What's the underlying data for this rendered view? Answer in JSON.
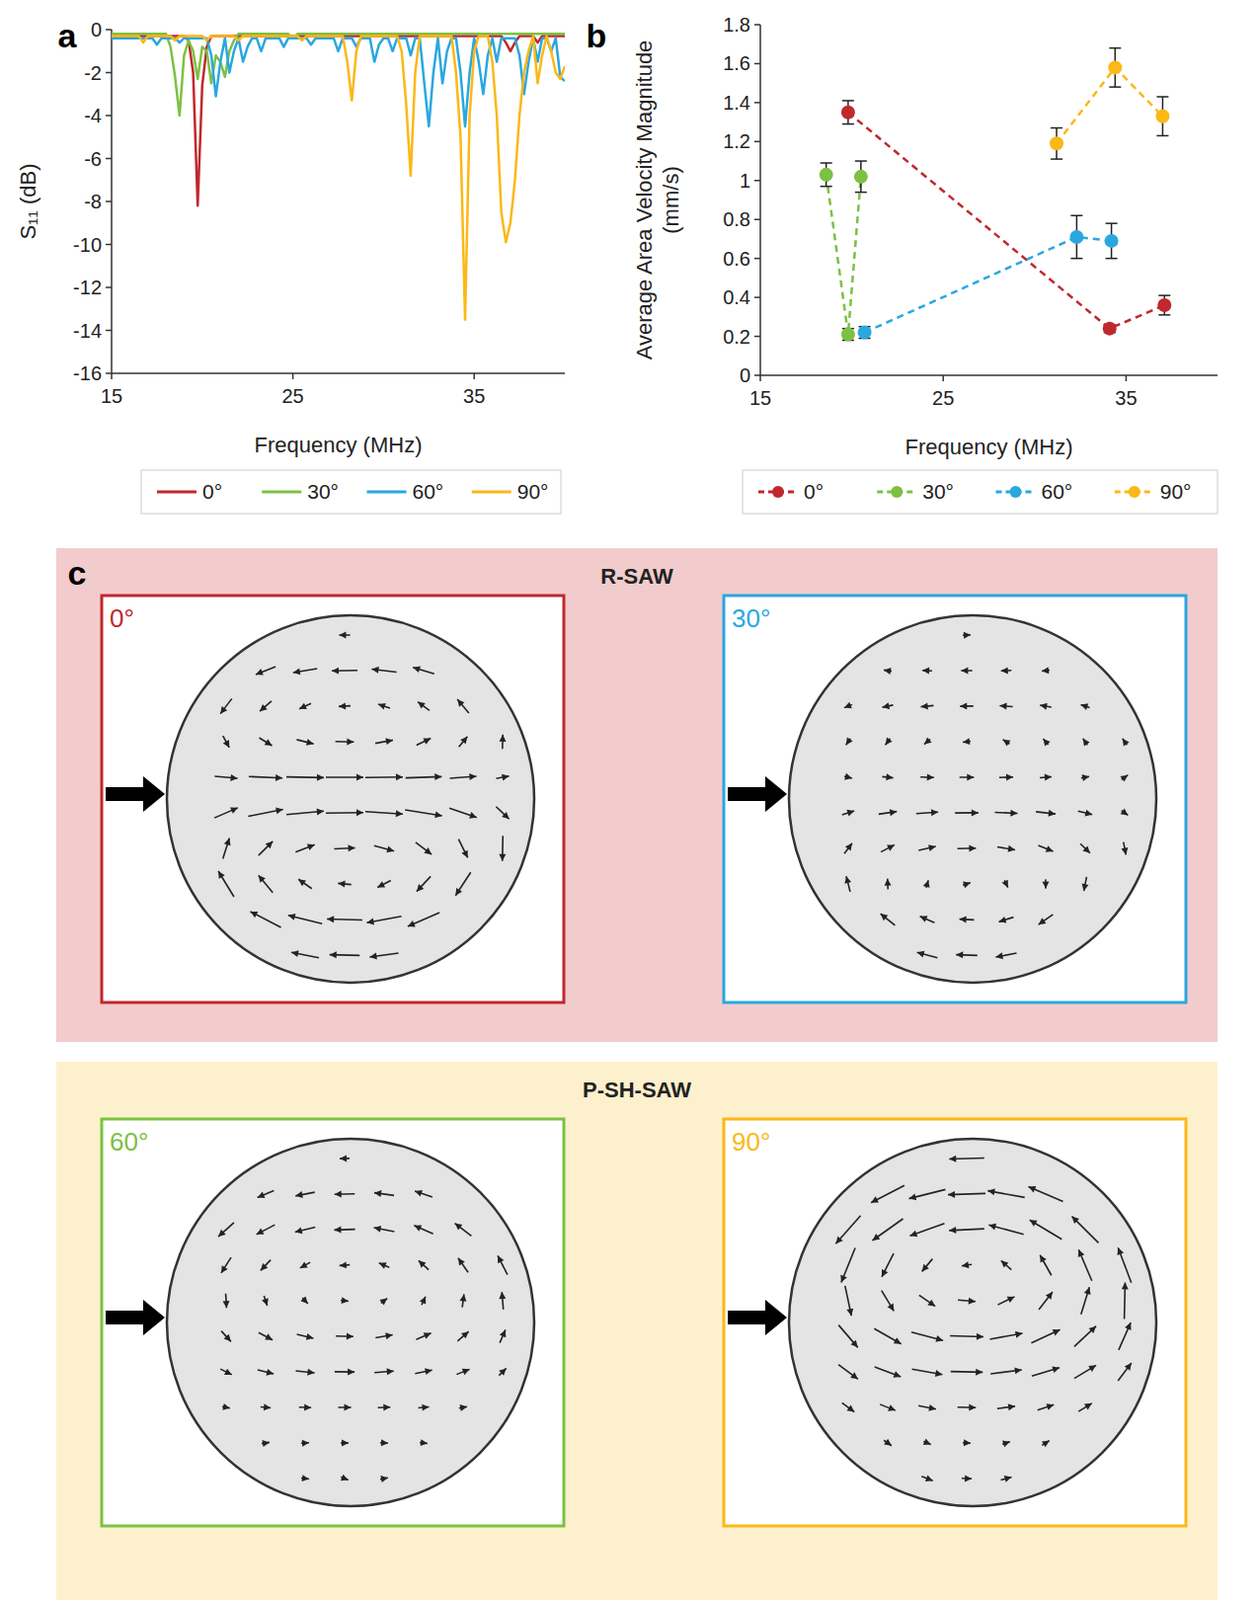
{
  "panel_labels": [
    "a",
    "b",
    "c"
  ],
  "chart_data": [
    {
      "type": "line",
      "x_label": "Frequency (MHz)",
      "y_label": "S₁₁ (dB)",
      "legend": "bottom",
      "xlim": [
        15,
        40
      ],
      "xticks": [
        15,
        25,
        35
      ],
      "ylim": [
        -16,
        0
      ],
      "yticks": [
        -16,
        -14,
        -12,
        -10,
        -8,
        -6,
        -4,
        -2,
        0
      ],
      "x": [
        15,
        15.25,
        15.5,
        15.75,
        16,
        16.25,
        16.5,
        16.75,
        17,
        17.25,
        17.5,
        17.75,
        18,
        18.25,
        18.5,
        18.75,
        19,
        19.25,
        19.5,
        19.75,
        20,
        20.25,
        20.5,
        20.75,
        21,
        21.25,
        21.5,
        21.75,
        22,
        22.25,
        22.5,
        22.75,
        23,
        23.25,
        23.5,
        23.75,
        24,
        24.25,
        24.5,
        24.75,
        25,
        25.25,
        25.5,
        25.75,
        26,
        26.25,
        26.5,
        26.75,
        27,
        27.25,
        27.5,
        27.75,
        28,
        28.25,
        28.5,
        28.75,
        29,
        29.25,
        29.5,
        29.75,
        30,
        30.25,
        30.5,
        30.75,
        31,
        31.25,
        31.5,
        31.75,
        32,
        32.25,
        32.5,
        32.75,
        33,
        33.25,
        33.5,
        33.75,
        34,
        34.25,
        34.5,
        34.75,
        35,
        35.25,
        35.5,
        35.75,
        36,
        36.25,
        36.5,
        36.75,
        37,
        37.25,
        37.5,
        37.75,
        38,
        38.25,
        38.5,
        38.75,
        39,
        39.25,
        39.5,
        39.75,
        40
      ],
      "series": [
        {
          "name": "0°",
          "color": "#c0282d",
          "values": [
            -0.3,
            -0.3,
            -0.3,
            -0.3,
            -0.3,
            -0.3,
            -0.3,
            -0.3,
            -0.3,
            -0.3,
            -0.3,
            -0.3,
            -0.3,
            -0.3,
            -0.3,
            -0.3,
            -0.3,
            -0.5,
            -2.0,
            -8.2,
            -2.6,
            -0.8,
            -0.3,
            -0.3,
            -0.3,
            -0.3,
            -0.3,
            -0.3,
            -0.3,
            -0.3,
            -0.3,
            -0.3,
            -0.3,
            -0.3,
            -0.3,
            -0.3,
            -0.3,
            -0.3,
            -0.3,
            -0.3,
            -0.3,
            -0.3,
            -0.3,
            -0.3,
            -0.3,
            -0.3,
            -0.3,
            -0.3,
            -0.3,
            -0.3,
            -0.3,
            -0.3,
            -0.3,
            -0.3,
            -0.3,
            -0.3,
            -0.3,
            -0.3,
            -0.3,
            -0.3,
            -0.3,
            -0.3,
            -0.3,
            -0.3,
            -0.3,
            -0.3,
            -0.3,
            -0.3,
            -0.3,
            -0.3,
            -0.3,
            -0.3,
            -0.3,
            -0.3,
            -0.3,
            -0.3,
            -0.3,
            -0.3,
            -0.3,
            -0.3,
            -0.3,
            -0.3,
            -0.3,
            -0.3,
            -0.3,
            -0.3,
            -0.3,
            -0.6,
            -1.0,
            -0.6,
            -0.3,
            -0.3,
            -0.3,
            -0.3,
            -0.6,
            -0.3,
            -0.3,
            -0.3,
            -0.3,
            -0.3,
            -0.3
          ]
        },
        {
          "name": "30°",
          "color": "#7cc142",
          "values": [
            -0.2,
            -0.2,
            -0.2,
            -0.2,
            -0.2,
            -0.2,
            -0.2,
            -0.2,
            -0.2,
            -0.2,
            -0.2,
            -0.2,
            -0.2,
            -0.8,
            -2.2,
            -4.0,
            -1.2,
            -0.5,
            -1.0,
            -2.3,
            -0.8,
            -1.0,
            -2.5,
            -1.2,
            -1.5,
            -2.2,
            -1.0,
            -0.5,
            -0.2,
            -0.2,
            -0.2,
            -0.2,
            -0.2,
            -0.2,
            -0.2,
            -0.2,
            -0.2,
            -0.2,
            -0.2,
            -0.2,
            -0.4,
            -0.2,
            -0.2,
            -0.2,
            -0.2,
            -0.2,
            -0.2,
            -0.2,
            -0.2,
            -0.2,
            -0.2,
            -0.2,
            -0.2,
            -0.2,
            -0.2,
            -0.2,
            -0.2,
            -0.2,
            -0.2,
            -0.2,
            -0.2,
            -0.2,
            -0.2,
            -0.2,
            -0.2,
            -0.2,
            -0.2,
            -0.2,
            -0.2,
            -0.2,
            -0.2,
            -0.2,
            -0.2,
            -0.2,
            -0.2,
            -0.2,
            -0.2,
            -0.2,
            -0.2,
            -0.2,
            -0.2,
            -0.2,
            -0.2,
            -0.2,
            -0.2,
            -0.2,
            -0.2,
            -0.2,
            -0.2,
            -0.2,
            -0.2,
            -0.2,
            -0.2,
            -0.2,
            -0.2,
            -0.2,
            -0.2,
            -0.2,
            -0.2,
            -0.2,
            -0.2
          ]
        },
        {
          "name": "60°",
          "color": "#2aa7df",
          "values": [
            -0.4,
            -0.4,
            -0.4,
            -0.4,
            -0.4,
            -0.4,
            -0.4,
            -0.4,
            -0.4,
            -0.4,
            -0.7,
            -0.4,
            -0.4,
            -0.4,
            -0.4,
            -0.6,
            -0.4,
            -0.4,
            -0.4,
            -0.4,
            -0.4,
            -0.4,
            -1.2,
            -3.1,
            -1.5,
            -0.4,
            -2.0,
            -1.0,
            -0.4,
            -1.5,
            -0.8,
            -0.4,
            -0.4,
            -1.0,
            -0.4,
            -0.4,
            -0.4,
            -0.4,
            -0.8,
            -0.4,
            -0.4,
            -0.4,
            -0.4,
            -0.4,
            -0.7,
            -0.4,
            -0.4,
            -0.4,
            -0.4,
            -0.4,
            -1.0,
            -0.4,
            -0.4,
            -0.4,
            -0.8,
            -0.4,
            -0.4,
            -0.4,
            -1.5,
            -0.7,
            -0.4,
            -0.4,
            -1.0,
            -0.4,
            -0.4,
            -0.4,
            -1.2,
            -0.4,
            -0.4,
            -2.5,
            -4.5,
            -2.0,
            -0.4,
            -2.5,
            -1.0,
            -0.4,
            -0.4,
            -2.0,
            -4.5,
            -2.0,
            -0.4,
            -1.5,
            -3.0,
            -1.2,
            -0.4,
            -1.5,
            -0.4,
            -0.4,
            -0.4,
            -0.4,
            -1.2,
            -3.0,
            -1.5,
            -0.4,
            -1.5,
            -0.4,
            -0.4,
            -1.0,
            -0.4,
            -2.2,
            -2.4
          ]
        },
        {
          "name": "90°",
          "color": "#fbb817",
          "values": [
            -0.3,
            -0.3,
            -0.3,
            -0.3,
            -0.3,
            -0.3,
            -0.3,
            -0.6,
            -0.3,
            -0.3,
            -0.3,
            -0.3,
            -0.3,
            -0.3,
            -0.5,
            -0.3,
            -0.3,
            -0.3,
            -0.3,
            -0.3,
            -0.3,
            -0.5,
            -0.3,
            -0.3,
            -0.3,
            -0.3,
            -0.3,
            -0.3,
            -0.5,
            -0.3,
            -0.3,
            -0.3,
            -0.3,
            -0.3,
            -0.3,
            -0.3,
            -0.3,
            -0.3,
            -0.3,
            -0.3,
            -0.3,
            -0.3,
            -0.5,
            -0.3,
            -0.3,
            -0.3,
            -0.3,
            -0.3,
            -0.3,
            -0.3,
            -0.3,
            -0.3,
            -1.5,
            -3.3,
            -1.0,
            -0.3,
            -0.3,
            -0.3,
            -0.3,
            -0.3,
            -0.3,
            -0.3,
            -0.3,
            -0.3,
            -1.0,
            -3.5,
            -6.8,
            -2.0,
            -0.3,
            -0.3,
            -0.3,
            -0.3,
            -0.3,
            -0.3,
            -0.3,
            -0.3,
            -2.0,
            -5.0,
            -13.5,
            -4.0,
            -1.0,
            -0.3,
            -0.3,
            -0.3,
            -1.5,
            -4.0,
            -8.5,
            -9.9,
            -9.0,
            -7.0,
            -4.0,
            -2.0,
            -1.0,
            -0.3,
            -2.5,
            -1.2,
            -0.3,
            -1.0,
            -2.0,
            -2.3,
            -1.7
          ]
        }
      ]
    },
    {
      "type": "scatter",
      "x_label": "Frequency (MHz)",
      "y_label": "Average Area Velocity Magnitude (mm/s)",
      "legend": "bottom",
      "marker": "circle",
      "line_style": "dashed",
      "xlim": [
        15,
        40
      ],
      "xticks": [
        15,
        25,
        35
      ],
      "ylim": [
        0,
        1.8
      ],
      "yticks": [
        0,
        0.2,
        0.4,
        0.6,
        0.8,
        1,
        1.2,
        1.4,
        1.6,
        1.8
      ],
      "series": [
        {
          "name": "0°",
          "color": "#c0282d",
          "x": [
            19.8,
            34.1,
            37.1
          ],
          "values": [
            1.35,
            0.24,
            0.36
          ],
          "errors": [
            0.06,
            0.02,
            0.05
          ]
        },
        {
          "name": "30°",
          "color": "#7cc142",
          "x": [
            18.6,
            19.8,
            20.5
          ],
          "values": [
            1.03,
            0.21,
            1.02
          ],
          "errors": [
            0.06,
            0.03,
            0.08
          ]
        },
        {
          "name": "60°",
          "color": "#2aa7df",
          "x": [
            20.7,
            32.3,
            34.2
          ],
          "values": [
            0.22,
            0.71,
            0.69
          ],
          "errors": [
            0.03,
            0.11,
            0.09
          ]
        },
        {
          "name": "90°",
          "color": "#fbb817",
          "x": [
            31.2,
            34.4,
            37.0
          ],
          "values": [
            1.19,
            1.58,
            1.33
          ],
          "errors": [
            0.08,
            0.1,
            0.1
          ]
        }
      ]
    }
  ],
  "panel_c": {
    "groups": [
      {
        "title": "R-SAW",
        "color": "#f2cccc",
        "images": [
          {
            "label": "0°",
            "color": "#c0282d"
          },
          {
            "label": "30°",
            "color": "#2aa7df"
          }
        ]
      },
      {
        "title": "P-SH-SAW",
        "color": "#fdf0cc",
        "images": [
          {
            "label": "60°",
            "color": "#7cc142"
          },
          {
            "label": "90°",
            "color": "#fbb817"
          }
        ]
      }
    ]
  }
}
